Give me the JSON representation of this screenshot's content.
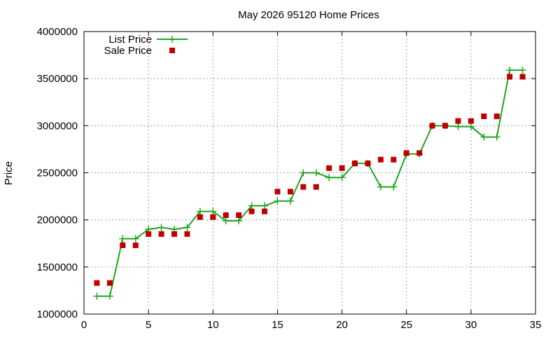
{
  "chart_data": {
    "type": "line",
    "title": "May 2026 95120 Home Prices",
    "xlabel": "",
    "ylabel": "Price",
    "xlim": [
      0,
      35
    ],
    "ylim": [
      1000000,
      4000000
    ],
    "xticks": [
      0,
      5,
      10,
      15,
      20,
      25,
      30,
      35
    ],
    "yticks": [
      1000000,
      1500000,
      2000000,
      2500000,
      3000000,
      3500000,
      4000000
    ],
    "xtick_labels": [
      "0",
      "5",
      "10",
      "15",
      "20",
      "25",
      "30",
      "35"
    ],
    "ytick_labels": [
      "1000000",
      "1500000",
      "2000000",
      "2500000",
      "3000000",
      "3500000",
      "4000000"
    ],
    "grid": true,
    "legend_position": "top-left",
    "series": [
      {
        "name": "List Price",
        "style": "line-plus",
        "color": "#1fa61f",
        "x": [
          1,
          2,
          3,
          4,
          5,
          6,
          7,
          8,
          9,
          10,
          11,
          12,
          13,
          14,
          15,
          16,
          17,
          18,
          19,
          20,
          21,
          22,
          23,
          24,
          25,
          26,
          27,
          28,
          29,
          30,
          31,
          32,
          33,
          34
        ],
        "values": [
          1190000,
          1190000,
          1800000,
          1800000,
          1900000,
          1920000,
          1900000,
          1920000,
          2090000,
          2090000,
          1990000,
          1990000,
          2150000,
          2150000,
          2200000,
          2200000,
          2500000,
          2500000,
          2450000,
          2450000,
          2600000,
          2600000,
          2350000,
          2350000,
          2700000,
          2700000,
          3000000,
          3000000,
          2990000,
          2990000,
          2880000,
          2880000,
          3590000,
          3590000
        ]
      },
      {
        "name": "Sale Price",
        "style": "square-points",
        "color": "#c00000",
        "x": [
          1,
          2,
          3,
          4,
          5,
          6,
          7,
          8,
          9,
          10,
          11,
          12,
          13,
          14,
          15,
          16,
          17,
          18,
          19,
          20,
          21,
          22,
          23,
          24,
          25,
          26,
          27,
          28,
          29,
          30,
          31,
          32,
          33,
          34
        ],
        "values": [
          1330000,
          1330000,
          1730000,
          1730000,
          1850000,
          1850000,
          1850000,
          1850000,
          2030000,
          2030000,
          2050000,
          2050000,
          2090000,
          2090000,
          2300000,
          2300000,
          2350000,
          2350000,
          2550000,
          2550000,
          2600000,
          2600000,
          2640000,
          2640000,
          2710000,
          2710000,
          3000000,
          3000000,
          3050000,
          3050000,
          3100000,
          3100000,
          3520000,
          3520000
        ]
      }
    ]
  }
}
